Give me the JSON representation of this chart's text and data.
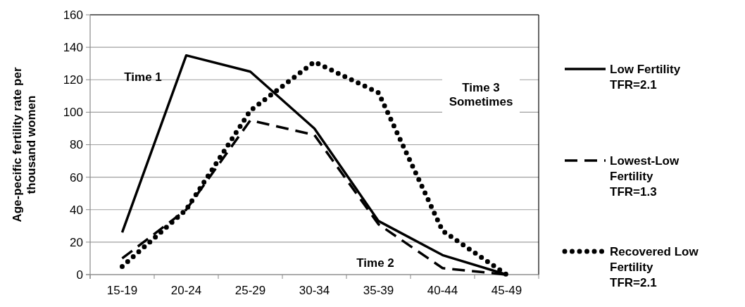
{
  "chart_data": {
    "type": "line",
    "ylabel": "Age-pecific fertility rate per thousand women",
    "categories": [
      "15-19",
      "20-24",
      "25-29",
      "30-34",
      "35-39",
      "40-44",
      "45-49"
    ],
    "series": [
      {
        "name": "Low Fertility TFR=2.1",
        "color": "#000000",
        "line_style": "solid",
        "values": [
          26,
          135,
          125,
          90,
          33,
          12,
          0
        ]
      },
      {
        "name": "Lowest-Low Fertility TFR=1.3",
        "color": "#000000",
        "line_style": "dashed",
        "values": [
          10,
          40,
          95,
          86,
          31,
          4,
          0
        ]
      },
      {
        "name": "Recovered Low Fertility TFR=2.1",
        "color": "#000000",
        "line_style": "dotted",
        "values": [
          5,
          40,
          101,
          131,
          112,
          27,
          0
        ]
      }
    ],
    "ylim": [
      0,
      160
    ],
    "yticks": [
      0,
      20,
      40,
      60,
      80,
      100,
      120,
      140,
      160
    ],
    "grid": "y",
    "legend": "right",
    "annotations": [
      "Time 1",
      "Time 2",
      "Time 3\nSometimes"
    ]
  }
}
